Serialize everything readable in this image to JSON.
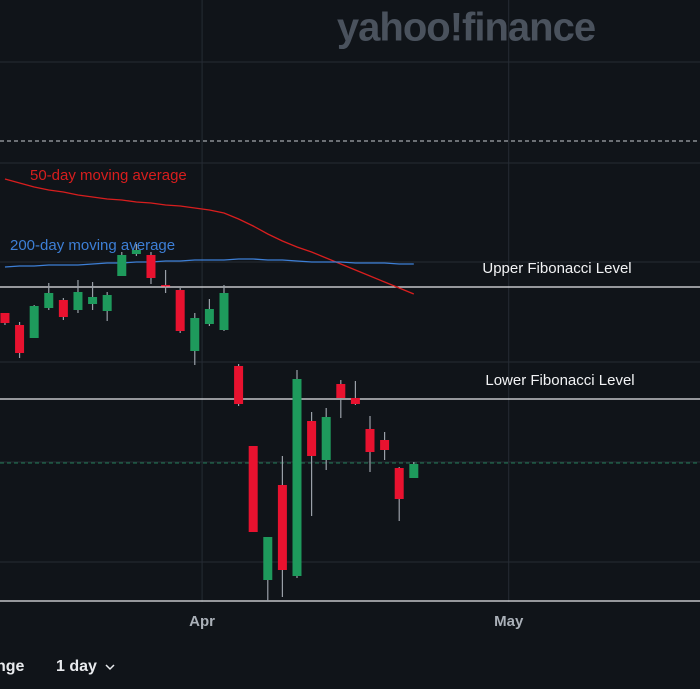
{
  "chart_data": {
    "type": "candlestick",
    "watermark": "yahoo!finance",
    "x": [
      0,
      1,
      2,
      3,
      4,
      5,
      6,
      7,
      8,
      9,
      10,
      11,
      12,
      13,
      14,
      15,
      16,
      17,
      18,
      19,
      20,
      21,
      22,
      23,
      24,
      25,
      26,
      27,
      28
    ],
    "open": [
      128.9,
      127.7,
      126.4,
      129.4,
      130.2,
      129.2,
      129.8,
      129.1,
      132.6,
      134.8,
      134.7,
      131.7,
      131.2,
      125.1,
      127.8,
      127.2,
      123.6,
      115.6,
      102.2,
      111.7,
      102.6,
      118.1,
      114.2,
      121.8,
      120.4,
      117.3,
      116.2,
      113.4,
      112.4
    ],
    "high": [
      128.9,
      128.0,
      129.7,
      131.9,
      130.4,
      132.2,
      132.0,
      131.0,
      135.0,
      135.8,
      135.0,
      133.2,
      131.4,
      128.9,
      130.3,
      131.7,
      123.8,
      115.6,
      106.5,
      114.6,
      123.2,
      119.0,
      119.4,
      122.2,
      122.1,
      118.6,
      117.0,
      113.5,
      114.0
    ],
    "low": [
      127.7,
      124.4,
      126.4,
      129.2,
      128.2,
      128.9,
      129.2,
      128.1,
      132.6,
      134.6,
      131.8,
      130.9,
      126.9,
      123.7,
      127.6,
      127.1,
      119.6,
      107.0,
      100.1,
      100.5,
      102.4,
      108.6,
      113.2,
      118.4,
      119.7,
      113.0,
      114.2,
      108.1,
      112.4
    ],
    "close": [
      127.9,
      124.9,
      129.6,
      130.9,
      128.5,
      131.0,
      130.5,
      130.7,
      134.7,
      135.2,
      132.4,
      131.6,
      127.1,
      128.4,
      129.3,
      130.9,
      119.8,
      107.0,
      106.5,
      103.2,
      122.3,
      114.6,
      118.5,
      120.4,
      119.8,
      115.0,
      115.2,
      110.3,
      113.8
    ],
    "up_color": "#1e9a5c",
    "down_color": "#e8122f",
    "series": [
      {
        "name": "50-day moving average",
        "color": "#d81e1e",
        "values": [
          142.3,
          141.9,
          141.5,
          141.2,
          141.0,
          140.7,
          140.5,
          140.3,
          140.2,
          140.0,
          139.9,
          139.7,
          139.6,
          139.4,
          139.2,
          138.9,
          138.3,
          137.6,
          136.8,
          136.1,
          135.5,
          135.0,
          134.4,
          133.8,
          133.2,
          132.6,
          132.0,
          131.4,
          130.8
        ]
      },
      {
        "name": "200-day moving average",
        "color": "#3d7fd6",
        "values": [
          133.5,
          133.6,
          133.6,
          133.7,
          133.7,
          133.7,
          133.8,
          133.9,
          133.9,
          134.0,
          134.0,
          134.1,
          134.1,
          134.2,
          134.2,
          134.2,
          134.3,
          134.3,
          134.2,
          134.2,
          134.1,
          134.0,
          134.0,
          134.0,
          133.9,
          133.9,
          133.9,
          133.8,
          133.8
        ]
      }
    ],
    "levels": [
      {
        "label": "Upper Fibonacci Level",
        "value": 131.5
      },
      {
        "label": "Lower Fibonacci Level",
        "value": 120.3
      },
      {
        "value": 100.1
      }
    ],
    "reference_lines": [
      {
        "value": 146.1,
        "color": "#c9ccd1"
      },
      {
        "value": 113.9,
        "color": "#1f7a55"
      }
    ],
    "gridlines": [
      154.0,
      143.9,
      134.0,
      124.0,
      114.0,
      104.0
    ],
    "ylim": [
      100,
      160
    ],
    "xlim": [
      -0.34,
      47.6
    ],
    "xticks": [
      {
        "value": 13.5,
        "label": "Apr"
      },
      {
        "value": 34.5,
        "label": "May"
      }
    ],
    "controls": {
      "range": "nge",
      "interval": "1 day"
    }
  }
}
